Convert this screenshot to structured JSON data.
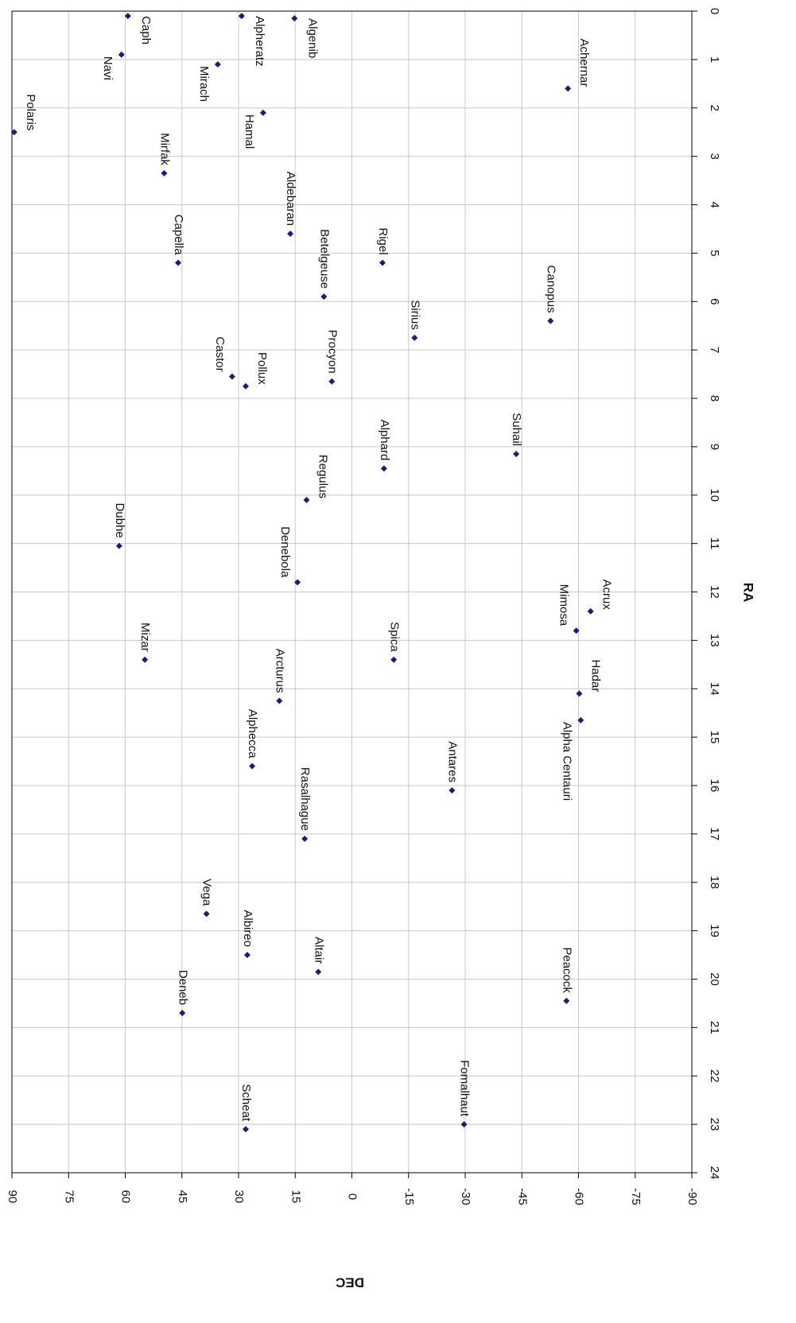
{
  "chart_data": {
    "type": "scatter",
    "xlabel": "RA",
    "ylabel": "DEC",
    "labels": [
      "Caph",
      "Alpheratz",
      "Algenib",
      "Navi",
      "Mirach",
      "Achernar",
      "Hamal",
      "Polaris",
      "Mirfak",
      "Aldebaran",
      "Capella",
      "Rigel",
      "Betelgeuse",
      "Canopus",
      "Sirius",
      "Castor",
      "Procyon",
      "Pollux",
      "Suhail",
      "Alphard",
      "Regulus",
      "Dubhe",
      "Denebola",
      "Acrux",
      "Mimosa",
      "Mizar",
      "Spica",
      "Hadar",
      "Arcturus",
      "Alpha Centauri",
      "Alphecca",
      "Antares",
      "Rasalhague",
      "Vega",
      "Albireo",
      "Altair",
      "Peacock",
      "Deneb",
      "Fomalhaut",
      "Scheat"
    ],
    "x": [
      0.1,
      0.1,
      0.15,
      0.9,
      1.1,
      1.6,
      2.1,
      2.5,
      3.35,
      4.6,
      5.2,
      5.2,
      5.9,
      6.4,
      6.75,
      7.55,
      7.65,
      7.75,
      9.15,
      9.45,
      10.1,
      11.05,
      11.8,
      12.4,
      12.8,
      13.4,
      13.4,
      14.1,
      14.25,
      14.65,
      15.6,
      16.1,
      17.1,
      18.65,
      19.5,
      19.85,
      20.45,
      20.7,
      23.0,
      23.1
    ],
    "values": [
      59.3,
      29.2,
      15.2,
      61,
      35.5,
      -57.2,
      23.5,
      89.4,
      49.7,
      16.3,
      46,
      -8.1,
      7.4,
      -52.6,
      -16.6,
      31.7,
      5.3,
      28.1,
      -43.5,
      -8.5,
      12,
      61.6,
      14.4,
      -63.2,
      -59.4,
      54.8,
      -11.1,
      -60.2,
      19.2,
      -60.6,
      26.4,
      -26.5,
      12.5,
      38.5,
      27.7,
      8.9,
      -56.8,
      44.9,
      -29.7,
      28.1
    ],
    "color": "#1c1c78",
    "xlim": [
      0,
      24
    ],
    "xticks": [
      0,
      1,
      2,
      3,
      4,
      5,
      6,
      7,
      8,
      9,
      10,
      11,
      12,
      13,
      14,
      15,
      16,
      17,
      18,
      19,
      20,
      21,
      22,
      23,
      24
    ],
    "ylim": [
      -90,
      90
    ],
    "yticks": [
      90,
      75,
      60,
      45,
      30,
      15,
      0,
      -15,
      -30,
      -45,
      -60,
      -75,
      -90
    ],
    "grid": true
  }
}
